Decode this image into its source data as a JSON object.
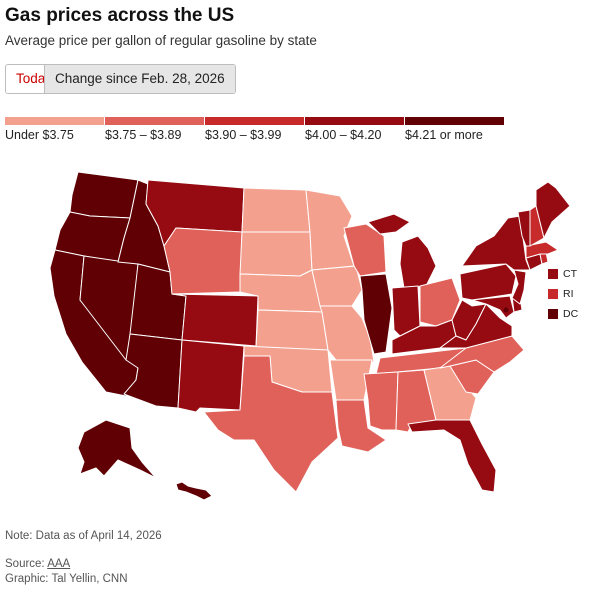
{
  "header": {
    "title": "Gas prices across the US",
    "subtitle": "Average price per gallon of regular gasoline by state"
  },
  "toggle": {
    "today_label": "Today",
    "change_label": "Change since Feb. 28, 2026",
    "selected": "Today"
  },
  "legend": {
    "bins": [
      {
        "label": "Under $3.75",
        "color": "#f4a08f"
      },
      {
        "label": "$3.75 – $3.89",
        "color": "#e0615a"
      },
      {
        "label": "$3.90 – $3.99",
        "color": "#c62a2a"
      },
      {
        "label": "$4.00 – $4.20",
        "color": "#960a12"
      },
      {
        "label": "$4.21 or more",
        "color": "#600005"
      }
    ]
  },
  "small_states": [
    {
      "label": "CT",
      "bin": 3
    },
    {
      "label": "RI",
      "bin": 2
    },
    {
      "label": "DC",
      "bin": 4
    }
  ],
  "map_data": {
    "state_bins": {
      "WA": 4,
      "OR": 4,
      "CA": 4,
      "NV": 4,
      "ID": 4,
      "UT": 4,
      "AZ": 4,
      "AK": 4,
      "HI": 4,
      "IL": 4,
      "MT": 3,
      "WY": 1,
      "CO": 3,
      "NM": 3,
      "MI": 3,
      "IN": 3,
      "KY": 3,
      "WV": 3,
      "VA": 3,
      "PA": 3,
      "NY": 3,
      "NJ": 3,
      "MD": 3,
      "DE": 3,
      "VT": 3,
      "ME": 3,
      "FL": 3,
      "CT": 3,
      "MA": 2,
      "NH": 2,
      "RI": 2,
      "WI": 1,
      "OH": 1,
      "NC": 1,
      "SC": 1,
      "TN": 1,
      "AL": 1,
      "MS": 1,
      "LA": 1,
      "TX": 1,
      "ND": 0,
      "SD": 0,
      "NE": 0,
      "KS": 0,
      "OK": 0,
      "MN": 0,
      "IA": 0,
      "MO": 0,
      "AR": 0,
      "GA": 0
    }
  },
  "footer": {
    "note": "Note: Data as of April 14, 2026",
    "source_prefix": "Source: ",
    "source_link": "AAA",
    "credit": "Graphic: Tal Yellin, CNN"
  }
}
